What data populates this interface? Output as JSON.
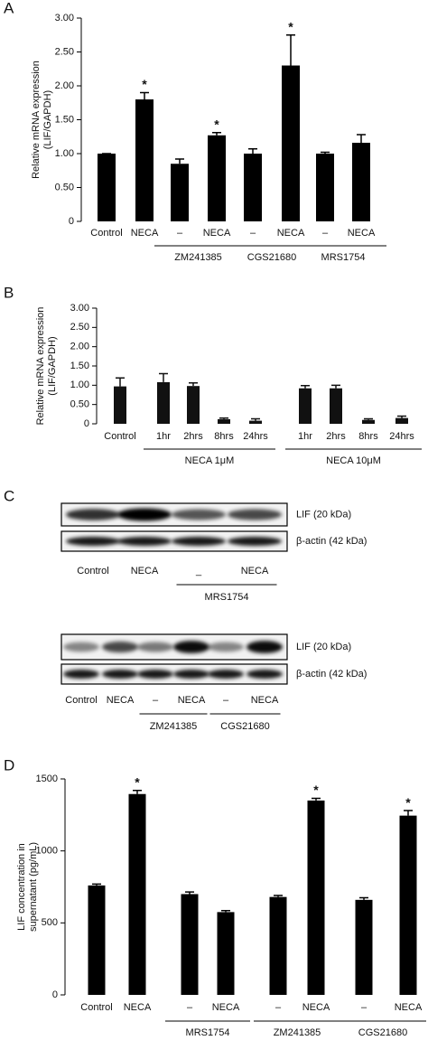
{
  "chart_data": [
    {
      "type": "bar",
      "panel": "A",
      "y_label": [
        "Relative mRNA expression",
        "(LIF/GAPDH)"
      ],
      "categories": [
        "Control",
        "NECA",
        "–",
        "NECA",
        "–",
        "NECA",
        "–",
        "NECA"
      ],
      "values": [
        1.0,
        1.8,
        0.85,
        1.27,
        1.0,
        2.3,
        1.0,
        1.16
      ],
      "errors": [
        0,
        0.1,
        0.07,
        0.04,
        0.07,
        0.45,
        0.02,
        0.12
      ],
      "significant": [
        false,
        true,
        false,
        true,
        false,
        true,
        false,
        false
      ],
      "marker": "*",
      "groups": [
        {
          "label": "ZM241385",
          "start": 2,
          "end": 3
        },
        {
          "label": "CGS21680",
          "start": 4,
          "end": 5
        },
        {
          "label": "MRS1754",
          "start": 6,
          "end": 7
        }
      ],
      "color": "#000000",
      "ylim": [
        0,
        3
      ],
      "yticks": [
        0,
        {
          "value": 0.5,
          "label": "0.50"
        },
        {
          "value": 1,
          "label": "1.00"
        },
        {
          "value": 1.5,
          "label": "1.50"
        },
        {
          "value": 2,
          "label": "2.00"
        },
        {
          "value": 2.5,
          "label": "2.50"
        },
        {
          "value": 3,
          "label": "3.00"
        }
      ]
    },
    {
      "type": "bar",
      "panel": "B",
      "y_label": [
        "Relative mRNA expression",
        "(LIF/GAPDH)"
      ],
      "categories": [
        "Control",
        "1hr",
        "2hrs",
        "8hrs",
        "24hrs",
        "1hr",
        "2hrs",
        "8hrs",
        "24hrs"
      ],
      "values": [
        0.97,
        1.08,
        0.98,
        0.12,
        0.08,
        0.92,
        0.92,
        0.1,
        0.15
      ],
      "errors": [
        0.22,
        0.22,
        0.08,
        0.03,
        0.05,
        0.07,
        0.08,
        0.03,
        0.05
      ],
      "groups": [
        {
          "label": "NECA 1μM",
          "start": 1,
          "end": 4
        },
        {
          "label": "NECA 10μM",
          "start": 5,
          "end": 8
        }
      ],
      "color": "#111111",
      "ylim": [
        0,
        3
      ],
      "yticks": [
        0,
        {
          "value": 0.5,
          "label": "0.50"
        },
        {
          "value": 1,
          "label": "1.00"
        },
        {
          "value": 1.5,
          "label": "1.50"
        },
        {
          "value": 2,
          "label": "2.00"
        },
        {
          "value": 2.5,
          "label": "2.50"
        },
        {
          "value": 3,
          "label": "3.00"
        }
      ]
    },
    {
      "type": "bar",
      "panel": "D",
      "y_label": [
        "LIF concentration in",
        "supernatant (pg/mL)"
      ],
      "categories": [
        "Control",
        "NECA",
        "–",
        "NECA",
        "–",
        "NECA",
        "–",
        "NECA"
      ],
      "values": [
        760,
        1395,
        700,
        575,
        680,
        1350,
        660,
        1245
      ],
      "errors": [
        10,
        25,
        15,
        10,
        10,
        15,
        15,
        35
      ],
      "significant": [
        false,
        true,
        false,
        false,
        false,
        true,
        false,
        true
      ],
      "marker": "*",
      "groups": [
        {
          "label": "MRS1754",
          "start": 2,
          "end": 3
        },
        {
          "label": "ZM241385",
          "start": 4,
          "end": 5
        },
        {
          "label": "CGS21680",
          "start": 6,
          "end": 7
        }
      ],
      "color": "#000000",
      "ylim": [
        0,
        1500
      ],
      "yticks": [
        0,
        500,
        1000,
        1500
      ]
    }
  ],
  "blots": {
    "panel": "C",
    "rows": [
      {
        "bands": [
          "LIF (20 kDa)",
          "β-actin (42 kDa)"
        ],
        "lanes": [
          "Control",
          "NECA",
          "_",
          "NECA"
        ],
        "groups": [
          {
            "label": "MRS1754",
            "start": 2,
            "end": 3
          }
        ]
      },
      {
        "bands": [
          "LIF (20 kDa)",
          "β-actin (42 kDa)"
        ],
        "lanes": [
          "Control",
          "NECA",
          "–",
          "NECA",
          "–",
          "NECA"
        ],
        "groups": [
          {
            "label": "ZM241385",
            "start": 2,
            "end": 3
          },
          {
            "label": "CGS21680",
            "start": 4,
            "end": 5
          }
        ]
      }
    ]
  }
}
